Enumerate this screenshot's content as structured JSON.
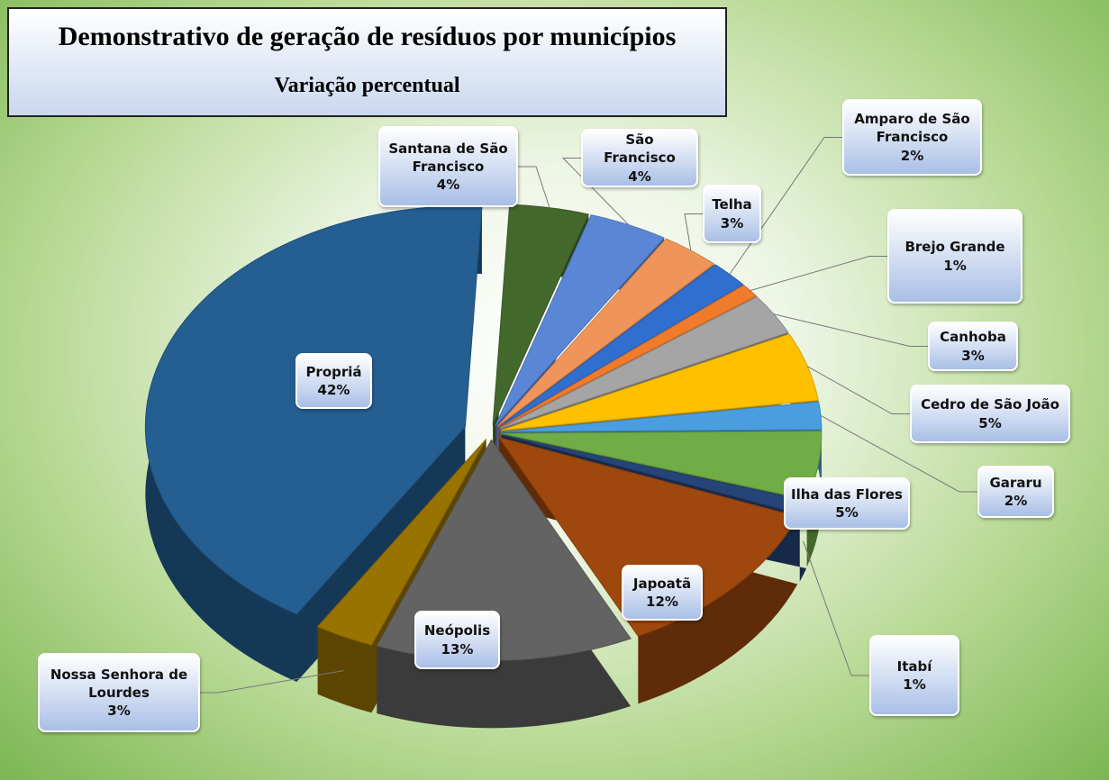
{
  "chart_data": {
    "type": "pie",
    "title": "Demonstrativo de geração de resíduos por municípios",
    "subtitle": "Variação percentual",
    "categories": [
      "Santana de São Francisco",
      "São Francisco",
      "Telha",
      "Amparo de São Francisco",
      "Brejo Grande",
      "Canhoba",
      "Cedro de São João",
      "Gararu",
      "Ilha das Flores",
      "Itabí",
      "Japoatã",
      "Neópolis",
      "Nossa Senhora de Lourdes",
      "Propriá"
    ],
    "values": [
      4,
      4,
      3,
      2,
      1,
      3,
      5,
      2,
      5,
      1,
      12,
      13,
      3,
      42
    ],
    "value_labels": [
      "4%",
      "4%",
      "3%",
      "2%",
      "1%",
      "3%",
      "5%",
      "2%",
      "5%",
      "1%",
      "12%",
      "13%",
      "3%",
      "42%"
    ],
    "colors": [
      "#43682b",
      "#5b86d6",
      "#f0955a",
      "#2f6fd0",
      "#f07b2a",
      "#a5a5a5",
      "#ffc000",
      "#4a9ee0",
      "#70ad47",
      "#264478",
      "#9e480e",
      "#636363",
      "#997300",
      "#255e91"
    ]
  }
}
